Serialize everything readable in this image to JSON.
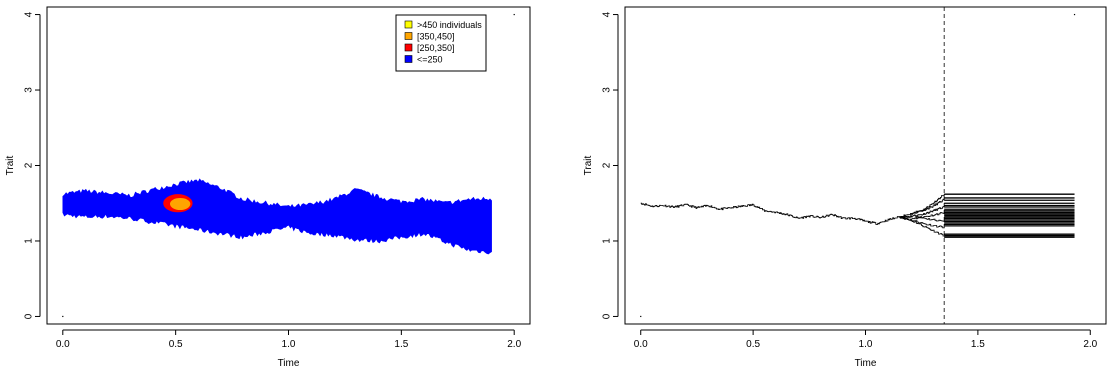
{
  "chart_data": [
    {
      "type": "heatmap",
      "xlabel": "Time",
      "ylabel": "Trait",
      "xlim": [
        -0.07,
        2.07
      ],
      "ylim": [
        -0.1,
        4.1
      ],
      "x_ticks": [
        "0.0",
        "0.5",
        "1.0",
        "1.5",
        "2.0"
      ],
      "y_ticks": [
        "0",
        "1",
        "2",
        "3",
        "4"
      ],
      "legend": {
        "placement": "top-right",
        "entries": [
          {
            "label": ">450 individuals",
            "color": "#ffff00"
          },
          {
            "label": "[350,450]",
            "color": "#ffa500"
          },
          {
            "label": "[250,350]",
            "color": "#ff0000"
          },
          {
            "label": "<=250",
            "color": "#0000ff"
          }
        ]
      },
      "band": {
        "x": [
          0.0,
          0.1,
          0.2,
          0.3,
          0.4,
          0.5,
          0.6,
          0.7,
          0.8,
          0.9,
          1.0,
          1.1,
          1.2,
          1.3,
          1.4,
          1.5,
          1.6,
          1.7,
          1.8,
          1.9
        ],
        "upper": [
          1.62,
          1.66,
          1.63,
          1.6,
          1.68,
          1.75,
          1.8,
          1.7,
          1.55,
          1.5,
          1.45,
          1.48,
          1.55,
          1.68,
          1.58,
          1.52,
          1.55,
          1.5,
          1.55,
          1.56
        ],
        "lower": [
          1.35,
          1.32,
          1.33,
          1.3,
          1.25,
          1.2,
          1.15,
          1.1,
          1.05,
          1.12,
          1.18,
          1.1,
          1.08,
          1.02,
          1.0,
          1.05,
          1.1,
          0.98,
          0.88,
          0.85
        ]
      },
      "hot_spots": [
        {
          "x": 0.03,
          "y": 1.49,
          "w": 0.05,
          "h": 0.2,
          "level": 3
        },
        {
          "x": 0.46,
          "y": 1.5,
          "w": 0.25,
          "h": 0.36,
          "level": 3
        },
        {
          "x": 0.51,
          "y": 1.5,
          "w": 0.13,
          "h": 0.24,
          "level": 2
        },
        {
          "x": 0.52,
          "y": 1.49,
          "w": 0.09,
          "h": 0.16,
          "level": 1
        },
        {
          "x": 0.38,
          "y": 1.43,
          "w": 0.08,
          "h": 0.2,
          "level": 3
        },
        {
          "x": 0.71,
          "y": 1.43,
          "w": 0.07,
          "h": 0.24,
          "level": 3
        },
        {
          "x": 0.78,
          "y": 1.4,
          "w": 0.04,
          "h": 0.16,
          "level": 3
        },
        {
          "x": 1.35,
          "y": 1.33,
          "w": 0.02,
          "h": 0.16,
          "level": 3
        },
        {
          "x": 1.57,
          "y": 1.23,
          "w": 0.1,
          "h": 0.26,
          "level": 3
        },
        {
          "x": 1.64,
          "y": 1.26,
          "w": 0.05,
          "h": 0.18,
          "level": 3
        }
      ],
      "stray_points": [
        {
          "x": 0.0,
          "y": 0.0
        },
        {
          "x": 2.0,
          "y": 4.0
        }
      ]
    },
    {
      "type": "line",
      "xlabel": "Time",
      "ylabel": "Trait",
      "xlim": [
        -0.07,
        2.07
      ],
      "ylim": [
        -0.1,
        4.1
      ],
      "x_ticks": [
        "0.0",
        "0.5",
        "1.0",
        "1.5",
        "2.0"
      ],
      "y_ticks": [
        "0",
        "1",
        "2",
        "3",
        "4"
      ],
      "vline": {
        "x": 1.35,
        "style": "dashed"
      },
      "trunk": {
        "x": [
          0.0,
          0.05,
          0.1,
          0.15,
          0.2,
          0.25,
          0.3,
          0.35,
          0.4,
          0.45,
          0.5,
          0.55,
          0.6,
          0.65,
          0.7,
          0.75,
          0.8,
          0.85,
          0.9,
          0.95,
          1.0,
          1.05,
          1.1,
          1.15
        ],
        "y": [
          1.5,
          1.46,
          1.47,
          1.45,
          1.48,
          1.44,
          1.47,
          1.42,
          1.44,
          1.46,
          1.48,
          1.4,
          1.38,
          1.35,
          1.3,
          1.33,
          1.31,
          1.35,
          1.3,
          1.3,
          1.26,
          1.23,
          1.28,
          1.32
        ]
      },
      "lineages": [
        {
          "x": [
            1.15,
            1.2,
            1.25,
            1.3,
            1.35
          ],
          "y": [
            1.32,
            1.36,
            1.4,
            1.46,
            1.55
          ]
        },
        {
          "x": [
            1.15,
            1.2,
            1.25,
            1.3,
            1.35
          ],
          "y": [
            1.32,
            1.33,
            1.35,
            1.4,
            1.45
          ]
        },
        {
          "x": [
            1.15,
            1.22,
            1.28,
            1.35
          ],
          "y": [
            1.32,
            1.3,
            1.33,
            1.38
          ]
        },
        {
          "x": [
            1.15,
            1.2,
            1.27,
            1.35
          ],
          "y": [
            1.32,
            1.28,
            1.22,
            1.18
          ]
        },
        {
          "x": [
            1.15,
            1.22,
            1.29,
            1.35
          ],
          "y": [
            1.32,
            1.25,
            1.15,
            1.07
          ]
        },
        {
          "x": [
            1.2,
            1.26,
            1.3,
            1.35
          ],
          "y": [
            1.36,
            1.42,
            1.5,
            1.62
          ]
        },
        {
          "x": [
            1.22,
            1.28,
            1.35
          ],
          "y": [
            1.33,
            1.29,
            1.26
          ]
        }
      ],
      "horizontal_segments": {
        "x_start": 1.35,
        "x_end": 1.93,
        "y": [
          1.62,
          1.57,
          1.54,
          1.5,
          1.47,
          1.45,
          1.42,
          1.4,
          1.38,
          1.36,
          1.34,
          1.32,
          1.3,
          1.28,
          1.26,
          1.24,
          1.22,
          1.2,
          1.09,
          1.07,
          1.05
        ]
      },
      "stray_points": [
        {
          "x": 0.0,
          "y": 0.0
        },
        {
          "x": 1.93,
          "y": 4.0
        }
      ]
    }
  ]
}
